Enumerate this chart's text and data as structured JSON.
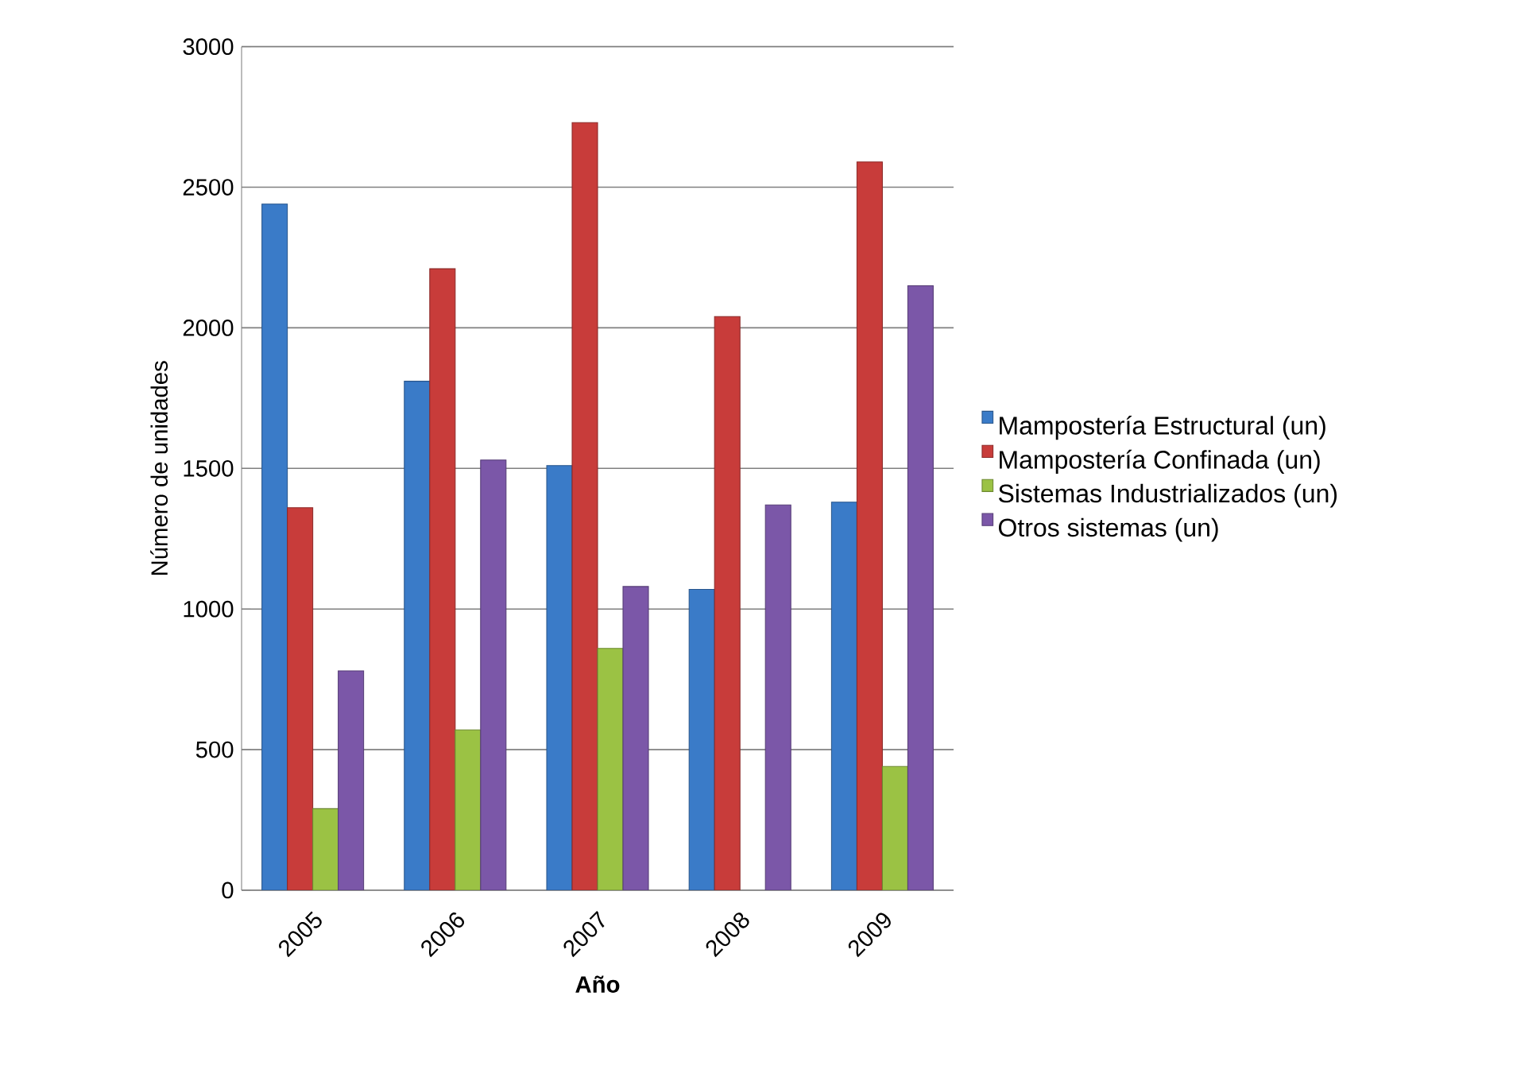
{
  "chart_data": {
    "type": "bar",
    "xlabel": "Año",
    "ylabel": "Número de unidades",
    "categories": [
      "2005",
      "2006",
      "2007",
      "2008",
      "2009"
    ],
    "series": [
      {
        "name": "Mampostería Estructural (un)",
        "color": "#3a7bc8",
        "values": [
          2440,
          1810,
          1510,
          1070,
          1380
        ]
      },
      {
        "name": "Mampostería Confinada (un)",
        "color": "#c83c3a",
        "values": [
          1360,
          2210,
          2730,
          2040,
          2590
        ]
      },
      {
        "name": "Sistemas Industrializados (un)",
        "color": "#9bc244",
        "values": [
          290,
          570,
          860,
          null,
          440
        ]
      },
      {
        "name": "Otros sistemas (un)",
        "color": "#7b57a8",
        "values": [
          780,
          1530,
          1080,
          1370,
          2150
        ]
      }
    ],
    "ylim": [
      0,
      3000
    ],
    "yticks": [
      0,
      500,
      1000,
      1500,
      2000,
      2500,
      3000
    ],
    "grid": "y",
    "legend": "right"
  }
}
